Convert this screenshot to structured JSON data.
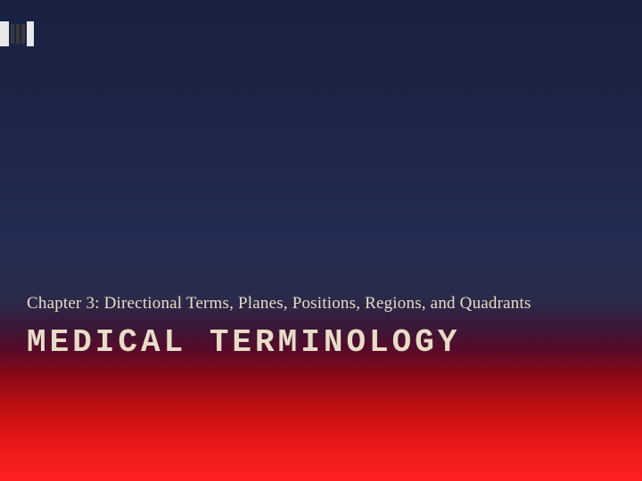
{
  "slide": {
    "subtitle": "Chapter 3: Directional Terms, Planes, Positions, Regions, and Quadrants",
    "title": "MEDICAL TERMINOLOGY",
    "colors": {
      "text_color": "#e8dcc8",
      "gradient_top": "#1a2142",
      "gradient_mid": "#232c52",
      "gradient_bottom": "#ff2020"
    },
    "typography": {
      "subtitle_fontsize": 19,
      "title_fontsize": 36,
      "title_letter_spacing": 4
    }
  }
}
